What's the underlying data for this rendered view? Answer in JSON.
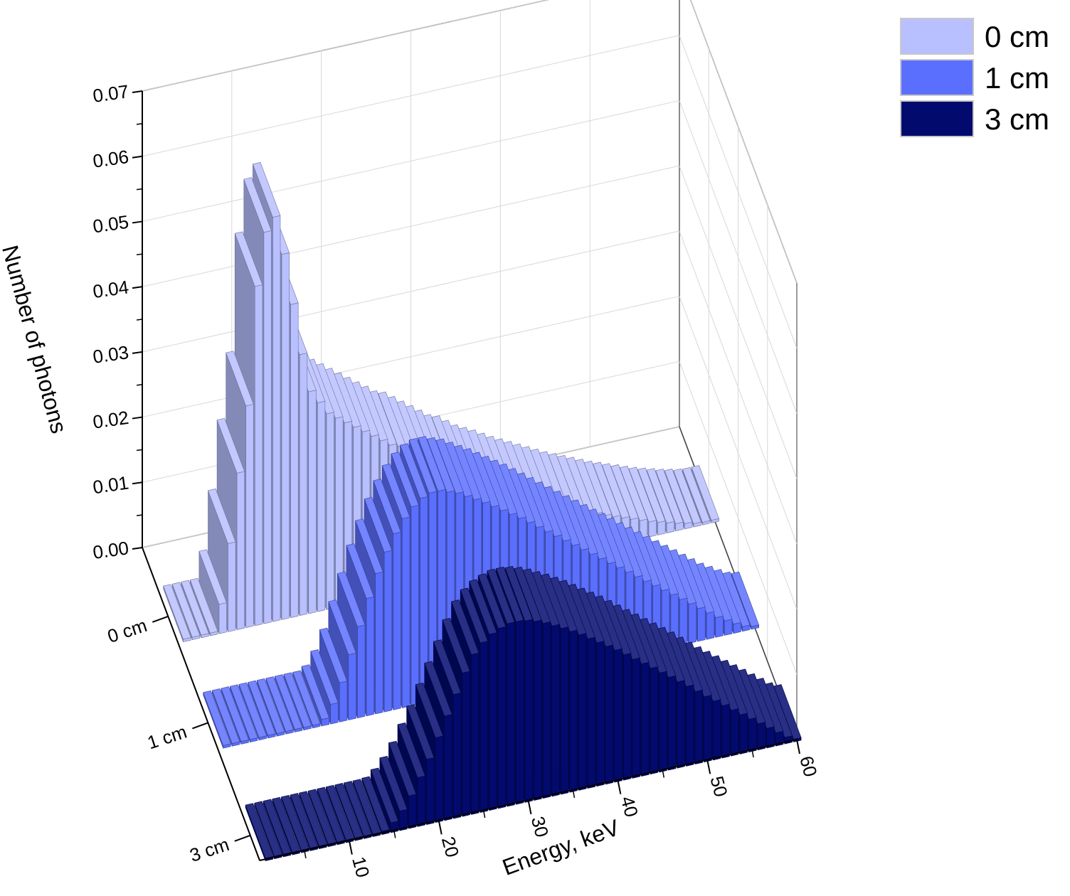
{
  "chart_data": {
    "type": "bar",
    "title": "",
    "xlabel": "Energy, keV",
    "ylabel": "Number of photons",
    "zlabel": "",
    "x_ticks": [
      "10",
      "20",
      "30",
      "40",
      "50",
      "60"
    ],
    "y_ticks": [
      "0.00",
      "0.01",
      "0.02",
      "0.03",
      "0.04",
      "0.05",
      "0.06",
      "0.07"
    ],
    "depth_ticks": [
      "0 cm",
      "1 cm",
      "3 cm"
    ],
    "xlim": [
      1,
      60
    ],
    "ylim": [
      0,
      0.07
    ],
    "grid": true,
    "legend_position": "top-right",
    "bin_energies": [
      1,
      2,
      3,
      4,
      5,
      6,
      7,
      8,
      9,
      10,
      11,
      12,
      13,
      14,
      15,
      16,
      17,
      18,
      19,
      20,
      21,
      22,
      23,
      24,
      25,
      26,
      27,
      28,
      29,
      30,
      31,
      32,
      33,
      34,
      35,
      36,
      37,
      38,
      39,
      40,
      41,
      42,
      43,
      44,
      45,
      46,
      47,
      48,
      49,
      50,
      51,
      52,
      53,
      54,
      55,
      56,
      57,
      58,
      59,
      60
    ],
    "series": [
      {
        "name": "0 cm",
        "color": "#b8c0ff",
        "values": [
          0,
          0,
          0,
          0,
          0.0045,
          0.0135,
          0.024,
          0.034,
          0.052,
          0.06,
          0.062,
          0.056,
          0.048,
          0.04,
          0.034,
          0.032,
          0.03,
          0.029,
          0.028,
          0.027,
          0.026,
          0.025,
          0.024,
          0.023,
          0.0225,
          0.0215,
          0.0205,
          0.0195,
          0.0185,
          0.0175,
          0.017,
          0.016,
          0.015,
          0.0143,
          0.0136,
          0.0128,
          0.012,
          0.0113,
          0.0106,
          0.0099,
          0.0092,
          0.0085,
          0.0078,
          0.0072,
          0.0066,
          0.006,
          0.0054,
          0.0048,
          0.0043,
          0.0038,
          0.0033,
          0.0028,
          0.0023,
          0.0019,
          0.0015,
          0.0011,
          0.0008,
          0.0005,
          0.0002,
          0
        ]
      },
      {
        "name": "1 cm",
        "color": "#5b6fff",
        "values": [
          0,
          0,
          0,
          0,
          0,
          0,
          0,
          0,
          0,
          0,
          0,
          0.001,
          0.003,
          0.006,
          0.01,
          0.014,
          0.018,
          0.0215,
          0.0245,
          0.027,
          0.029,
          0.0305,
          0.0315,
          0.032,
          0.032,
          0.0315,
          0.031,
          0.0302,
          0.0294,
          0.0286,
          0.0277,
          0.0268,
          0.0259,
          0.025,
          0.024,
          0.023,
          0.022,
          0.021,
          0.02,
          0.019,
          0.018,
          0.017,
          0.016,
          0.015,
          0.014,
          0.013,
          0.012,
          0.011,
          0.01,
          0.009,
          0.008,
          0.007,
          0.006,
          0.005,
          0.004,
          0.003,
          0.0022,
          0.0014,
          0.0007,
          0
        ]
      },
      {
        "name": "3 cm",
        "color": "#020a6e",
        "values": [
          0,
          0,
          0,
          0,
          0,
          0,
          0,
          0,
          0,
          0,
          0,
          0,
          0,
          0.0005,
          0.0015,
          0.003,
          0.005,
          0.0075,
          0.01,
          0.013,
          0.016,
          0.019,
          0.022,
          0.0245,
          0.026,
          0.027,
          0.0276,
          0.028,
          0.028,
          0.0278,
          0.0274,
          0.0268,
          0.0261,
          0.0254,
          0.0246,
          0.0238,
          0.0229,
          0.022,
          0.0211,
          0.0202,
          0.0192,
          0.0182,
          0.0172,
          0.0162,
          0.0152,
          0.0142,
          0.0132,
          0.0122,
          0.0111,
          0.01,
          0.009,
          0.008,
          0.007,
          0.006,
          0.005,
          0.004,
          0.003,
          0.002,
          0.001,
          0
        ]
      }
    ]
  }
}
